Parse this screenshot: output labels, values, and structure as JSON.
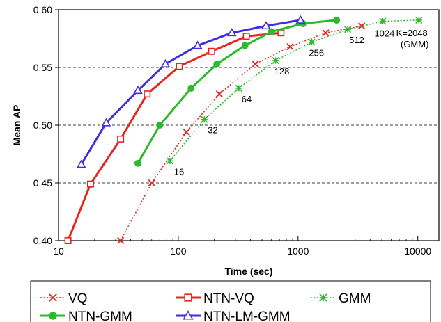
{
  "chart_data": {
    "type": "line",
    "title": "",
    "xlabel": "Time (sec)",
    "ylabel": "Mean AP",
    "x_scale": "log",
    "xlim": [
      10,
      15000
    ],
    "ylim": [
      0.4,
      0.6
    ],
    "x_ticks": [
      10,
      100,
      1000,
      10000
    ],
    "x_tick_labels": [
      "10",
      "100",
      "1000",
      "10000"
    ],
    "y_ticks": [
      0.4,
      0.45,
      0.5,
      0.55,
      0.6
    ],
    "y_tick_labels": [
      "0.40",
      "0.45",
      "0.50",
      "0.55",
      "0.60"
    ],
    "grid": "horizontal dashed",
    "legend_position": "bottom",
    "series": [
      {
        "name": "VQ",
        "color": "#e8231f",
        "line": "dotted",
        "marker": "x",
        "points": [
          [
            33,
            0.4
          ],
          [
            60,
            0.45
          ],
          [
            117,
            0.494
          ],
          [
            220,
            0.527
          ],
          [
            440,
            0.553
          ],
          [
            860,
            0.568
          ],
          [
            1700,
            0.58
          ],
          [
            3400,
            0.586
          ]
        ]
      },
      {
        "name": "NTN-VQ",
        "color": "#e8231f",
        "line": "solid",
        "marker": "square-open",
        "points": [
          [
            12,
            0.4
          ],
          [
            18.5,
            0.449
          ],
          [
            33,
            0.488
          ],
          [
            55,
            0.527
          ],
          [
            102,
            0.551
          ],
          [
            190,
            0.564
          ],
          [
            370,
            0.577
          ],
          [
            720,
            0.58
          ]
        ]
      },
      {
        "name": "GMM",
        "color": "#2db82d",
        "line": "dotted",
        "marker": "asterisk",
        "points": [
          [
            85,
            0.469
          ],
          [
            165,
            0.505
          ],
          [
            320,
            0.532
          ],
          [
            650,
            0.556
          ],
          [
            1300,
            0.572
          ],
          [
            2600,
            0.583
          ],
          [
            5100,
            0.59
          ],
          [
            10200,
            0.591
          ]
        ]
      },
      {
        "name": "NTN-GMM",
        "color": "#2db82d",
        "line": "solid",
        "marker": "circle",
        "points": [
          [
            46,
            0.467
          ],
          [
            70,
            0.5
          ],
          [
            128,
            0.532
          ],
          [
            210,
            0.553
          ],
          [
            360,
            0.569
          ],
          [
            600,
            0.581
          ],
          [
            1100,
            0.588
          ],
          [
            2100,
            0.591
          ]
        ]
      },
      {
        "name": "NTN-LM-GMM",
        "color": "#3d2ee0",
        "line": "solid",
        "marker": "triangle-open",
        "points": [
          [
            15.5,
            0.466
          ],
          [
            25,
            0.502
          ],
          [
            46,
            0.53
          ],
          [
            78,
            0.553
          ],
          [
            145,
            0.569
          ],
          [
            280,
            0.58
          ],
          [
            540,
            0.586
          ],
          [
            1050,
            0.591
          ]
        ]
      }
    ],
    "annotations": [
      {
        "text": "16",
        "x": 85,
        "y": 0.469
      },
      {
        "text": "32",
        "x": 165,
        "y": 0.505
      },
      {
        "text": "64",
        "x": 320,
        "y": 0.532
      },
      {
        "text": "128",
        "x": 650,
        "y": 0.556
      },
      {
        "text": "256",
        "x": 1300,
        "y": 0.572
      },
      {
        "text": "512",
        "x": 2600,
        "y": 0.583
      },
      {
        "text": "1024",
        "x": 5100,
        "y": 0.59
      },
      {
        "text": "K=2048",
        "x": 10200,
        "y": 0.591
      },
      {
        "text": "(GMM)",
        "x": 10200,
        "y": 0.591
      }
    ]
  }
}
